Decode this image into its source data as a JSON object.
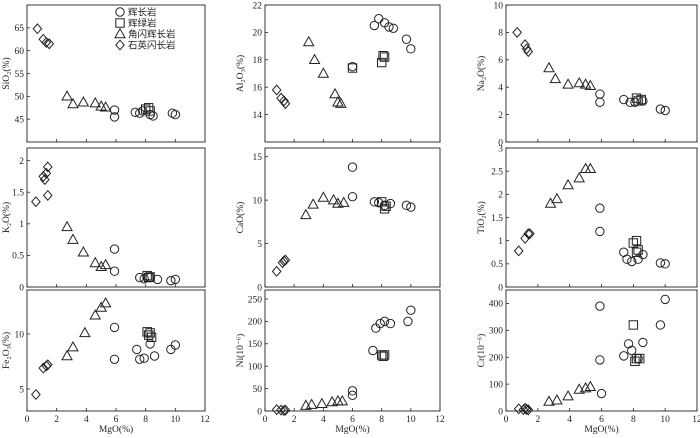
{
  "legend": {
    "items": [
      {
        "marker": "circle",
        "label": "辉长岩"
      },
      {
        "marker": "square",
        "label": "辉绿岩"
      },
      {
        "marker": "triangle",
        "label": "角闪辉长岩"
      },
      {
        "marker": "diamond",
        "label": "石英闪长岩"
      }
    ]
  },
  "chart_data": [
    {
      "type": "scatter",
      "ylabel": "SiO₂(%)",
      "xlabel": "",
      "xlim": [
        0,
        12
      ],
      "ylim": [
        40,
        70
      ],
      "x_ticks": [],
      "y_ticks": [
        45,
        50,
        55,
        60,
        65
      ],
      "series": [
        {
          "marker": "circle",
          "points": [
            [
              5.9,
              47
            ],
            [
              5.9,
              45.5
            ],
            [
              7.3,
              46.5
            ],
            [
              7.6,
              46.3
            ],
            [
              7.8,
              46.8
            ],
            [
              8.3,
              46
            ],
            [
              8.5,
              45.7
            ],
            [
              9.8,
              46.3
            ],
            [
              10,
              46
            ]
          ]
        },
        {
          "marker": "square",
          "points": [
            [
              8,
              47.2
            ],
            [
              8.2,
              47.5
            ],
            [
              8.3,
              46.8
            ]
          ]
        },
        {
          "marker": "triangle",
          "points": [
            [
              2.7,
              50
            ],
            [
              3.1,
              48.3
            ],
            [
              3.8,
              48.7
            ],
            [
              4.6,
              48.5
            ],
            [
              5,
              47.8
            ],
            [
              5.3,
              47.6
            ]
          ]
        },
        {
          "marker": "diamond",
          "points": [
            [
              0.7,
              64.8
            ],
            [
              1.1,
              62.5
            ],
            [
              1.3,
              61.8
            ],
            [
              1.5,
              61.5
            ]
          ]
        }
      ]
    },
    {
      "type": "scatter",
      "ylabel": "Al₂O₃(%)",
      "xlabel": "",
      "xlim": [
        0,
        12
      ],
      "ylim": [
        12,
        22
      ],
      "x_ticks": [],
      "y_ticks": [
        14,
        16,
        18,
        20,
        22
      ],
      "series": [
        {
          "marker": "circle",
          "points": [
            [
              6,
              17.5
            ],
            [
              7.5,
              20.5
            ],
            [
              7.8,
              21
            ],
            [
              8.2,
              20.7
            ],
            [
              8.5,
              20.4
            ],
            [
              8.8,
              20.3
            ],
            [
              9.7,
              19.5
            ],
            [
              10,
              18.8
            ]
          ]
        },
        {
          "marker": "square",
          "points": [
            [
              6,
              17.4
            ],
            [
              8,
              17.8
            ],
            [
              8.1,
              18.3
            ],
            [
              8.2,
              18.2
            ]
          ]
        },
        {
          "marker": "triangle",
          "points": [
            [
              3,
              19.3
            ],
            [
              3.4,
              18
            ],
            [
              4,
              17
            ],
            [
              4.8,
              15.5
            ],
            [
              5,
              14.9
            ],
            [
              5.2,
              14.8
            ]
          ]
        },
        {
          "marker": "diamond",
          "points": [
            [
              0.8,
              15.8
            ],
            [
              1.1,
              15.2
            ],
            [
              1.3,
              15.0
            ],
            [
              1.4,
              14.8
            ]
          ]
        }
      ]
    },
    {
      "type": "scatter",
      "ylabel": "Na₂O(%)",
      "xlabel": "",
      "xlim": [
        0,
        12
      ],
      "ylim": [
        0,
        10
      ],
      "x_ticks": [],
      "y_ticks": [
        0,
        2,
        4,
        6,
        8,
        10
      ],
      "series": [
        {
          "marker": "circle",
          "points": [
            [
              5.9,
              3.5
            ],
            [
              5.9,
              2.9
            ],
            [
              7.4,
              3.1
            ],
            [
              7.8,
              2.9
            ],
            [
              8.1,
              2.9
            ],
            [
              8.6,
              3.0
            ],
            [
              9.7,
              2.4
            ],
            [
              10,
              2.3
            ]
          ]
        },
        {
          "marker": "square",
          "points": [
            [
              8.2,
              3.2
            ],
            [
              8.3,
              3.0
            ],
            [
              8.5,
              3.1
            ]
          ]
        },
        {
          "marker": "triangle",
          "points": [
            [
              2.7,
              5.4
            ],
            [
              3.1,
              4.6
            ],
            [
              3.9,
              4.2
            ],
            [
              4.6,
              4.3
            ],
            [
              5,
              4.2
            ],
            [
              5.3,
              4.1
            ]
          ]
        },
        {
          "marker": "diamond",
          "points": [
            [
              0.7,
              8.0
            ],
            [
              1.2,
              7.1
            ],
            [
              1.3,
              6.8
            ],
            [
              1.4,
              6.6
            ]
          ]
        }
      ]
    },
    {
      "type": "scatter",
      "ylabel": "K₂O(%)",
      "xlabel": "",
      "xlim": [
        0,
        12
      ],
      "ylim": [
        0,
        2.2
      ],
      "x_ticks": [],
      "y_ticks": [
        0,
        0.5,
        1.0,
        1.5,
        2.0
      ],
      "series": [
        {
          "marker": "circle",
          "points": [
            [
              5.9,
              0.6
            ],
            [
              5.9,
              0.25
            ],
            [
              7.6,
              0.15
            ],
            [
              7.9,
              0.13
            ],
            [
              8.3,
              0.15
            ],
            [
              8.8,
              0.12
            ],
            [
              9.7,
              0.1
            ],
            [
              10,
              0.12
            ]
          ]
        },
        {
          "marker": "square",
          "points": [
            [
              8.1,
              0.18
            ],
            [
              8.2,
              0.15
            ],
            [
              8.3,
              0.16
            ]
          ]
        },
        {
          "marker": "triangle",
          "points": [
            [
              2.7,
              0.95
            ],
            [
              3.1,
              0.75
            ],
            [
              3.8,
              0.55
            ],
            [
              4.6,
              0.38
            ],
            [
              5,
              0.32
            ],
            [
              5.3,
              0.35
            ]
          ]
        },
        {
          "marker": "diamond",
          "points": [
            [
              0.6,
              1.35
            ],
            [
              1.1,
              1.75
            ],
            [
              1.2,
              1.7
            ],
            [
              1.3,
              1.8
            ],
            [
              1.4,
              1.9
            ],
            [
              1.4,
              1.45
            ]
          ]
        }
      ]
    },
    {
      "type": "scatter",
      "ylabel": "CaO(%)",
      "xlabel": "",
      "xlim": [
        0,
        12
      ],
      "ylim": [
        0,
        16
      ],
      "x_ticks": [],
      "y_ticks": [
        0,
        5,
        10,
        15
      ],
      "series": [
        {
          "marker": "circle",
          "points": [
            [
              6,
              13.8
            ],
            [
              6,
              10.4
            ],
            [
              7.5,
              9.8
            ],
            [
              7.8,
              9.7
            ],
            [
              8.2,
              9.4
            ],
            [
              8.6,
              9.6
            ],
            [
              9.7,
              9.4
            ],
            [
              10,
              9.2
            ]
          ]
        },
        {
          "marker": "square",
          "points": [
            [
              8,
              9.8
            ],
            [
              8.2,
              9.0
            ],
            [
              8.3,
              9.3
            ]
          ]
        },
        {
          "marker": "triangle",
          "points": [
            [
              2.8,
              8.3
            ],
            [
              3.3,
              9.5
            ],
            [
              4,
              10.3
            ],
            [
              4.7,
              10
            ],
            [
              5,
              9.6
            ],
            [
              5.4,
              9.7
            ]
          ]
        },
        {
          "marker": "diamond",
          "points": [
            [
              0.8,
              1.8
            ],
            [
              1.2,
              2.8
            ],
            [
              1.3,
              3.0
            ],
            [
              1.4,
              3.1
            ]
          ]
        }
      ]
    },
    {
      "type": "scatter",
      "ylabel": "TiO₂(%)",
      "xlabel": "",
      "xlim": [
        0,
        12
      ],
      "ylim": [
        0,
        3
      ],
      "x_ticks": [],
      "y_ticks": [
        0,
        0.5,
        1.0,
        1.5,
        2.0,
        2.5,
        3.0
      ],
      "series": [
        {
          "marker": "circle",
          "points": [
            [
              5.9,
              1.7
            ],
            [
              5.9,
              1.2
            ],
            [
              7.4,
              0.75
            ],
            [
              7.6,
              0.6
            ],
            [
              7.9,
              0.55
            ],
            [
              8.3,
              0.6
            ],
            [
              8.6,
              0.7
            ],
            [
              9.7,
              0.52
            ],
            [
              10,
              0.5
            ]
          ]
        },
        {
          "marker": "square",
          "points": [
            [
              8,
              0.95
            ],
            [
              8.2,
              1.0
            ],
            [
              8.3,
              0.8
            ],
            [
              8.2,
              0.75
            ]
          ]
        },
        {
          "marker": "triangle",
          "points": [
            [
              2.8,
              1.8
            ],
            [
              3.2,
              1.9
            ],
            [
              3.9,
              2.2
            ],
            [
              4.6,
              2.35
            ],
            [
              5,
              2.55
            ],
            [
              5.3,
              2.55
            ]
          ]
        },
        {
          "marker": "diamond",
          "points": [
            [
              0.8,
              0.78
            ],
            [
              1.2,
              1.05
            ],
            [
              1.4,
              1.15
            ],
            [
              1.5,
              1.15
            ]
          ]
        }
      ]
    },
    {
      "type": "scatter",
      "ylabel": "Fe₂O₃(%)",
      "xlabel": "MgO(%)",
      "xlim": [
        0,
        12
      ],
      "ylim": [
        3,
        14
      ],
      "x_ticks": [
        0,
        2,
        4,
        6,
        8,
        10,
        12
      ],
      "y_ticks": [
        5,
        10
      ],
      "series": [
        {
          "marker": "circle",
          "points": [
            [
              5.9,
              10.6
            ],
            [
              5.9,
              7.7
            ],
            [
              7.4,
              8.6
            ],
            [
              7.6,
              7.7
            ],
            [
              7.9,
              7.8
            ],
            [
              8.3,
              9.1
            ],
            [
              8.6,
              8.0
            ],
            [
              9.7,
              8.6
            ],
            [
              10,
              9.0
            ]
          ]
        },
        {
          "marker": "square",
          "points": [
            [
              8.1,
              10.2
            ],
            [
              8.2,
              9.9
            ],
            [
              8.3,
              10.1
            ],
            [
              8.4,
              9.7
            ]
          ]
        },
        {
          "marker": "triangle",
          "points": [
            [
              2.7,
              8.0
            ],
            [
              3.1,
              8.8
            ],
            [
              3.9,
              10.1
            ],
            [
              4.6,
              11.7
            ],
            [
              5,
              12.4
            ],
            [
              5.3,
              12.8
            ]
          ]
        },
        {
          "marker": "diamond",
          "points": [
            [
              0.6,
              4.5
            ],
            [
              1.1,
              6.9
            ],
            [
              1.3,
              7.1
            ],
            [
              1.4,
              7.2
            ]
          ]
        }
      ]
    },
    {
      "type": "scatter",
      "ylabel": "Ni(10⁻⁶)",
      "xlabel": "MgO(%)",
      "xlim": [
        0,
        12
      ],
      "ylim": [
        0,
        270
      ],
      "x_ticks": [
        0,
        2,
        4,
        6,
        8,
        10,
        12
      ],
      "y_ticks": [
        0,
        50,
        100,
        150,
        200,
        250
      ],
      "series": [
        {
          "marker": "circle",
          "points": [
            [
              6,
              45
            ],
            [
              6,
              35
            ],
            [
              7.4,
              135
            ],
            [
              7.6,
              185
            ],
            [
              7.9,
              195
            ],
            [
              8.2,
              200
            ],
            [
              8.6,
              195
            ],
            [
              9.8,
              200
            ],
            [
              10,
              225
            ]
          ]
        },
        {
          "marker": "square",
          "points": [
            [
              8,
              125
            ],
            [
              8.1,
              122
            ],
            [
              8.2,
              125
            ]
          ]
        },
        {
          "marker": "triangle",
          "points": [
            [
              2.8,
              12
            ],
            [
              3.2,
              14
            ],
            [
              3.9,
              16
            ],
            [
              4.6,
              20
            ],
            [
              5,
              22
            ],
            [
              5.3,
              22
            ]
          ]
        },
        {
          "marker": "diamond",
          "points": [
            [
              0.8,
              3
            ],
            [
              1.1,
              2
            ],
            [
              1.3,
              1
            ],
            [
              1.4,
              2
            ]
          ]
        }
      ]
    },
    {
      "type": "scatter",
      "ylabel": "Cr(10⁻⁶)",
      "xlabel": "MgO(%)",
      "xlim": [
        0,
        12
      ],
      "ylim": [
        0,
        450
      ],
      "x_ticks": [
        0,
        2,
        4,
        6,
        8,
        10,
        12
      ],
      "y_ticks": [
        0,
        100,
        200,
        300,
        400
      ],
      "series": [
        {
          "marker": "circle",
          "points": [
            [
              5.9,
              390
            ],
            [
              5.9,
              190
            ],
            [
              6,
              65
            ],
            [
              7.4,
              205
            ],
            [
              7.7,
              250
            ],
            [
              7.9,
              225
            ],
            [
              8.3,
              195
            ],
            [
              8.6,
              255
            ],
            [
              9.7,
              320
            ],
            [
              10,
              415
            ]
          ]
        },
        {
          "marker": "square",
          "points": [
            [
              8,
              320
            ],
            [
              8.1,
              185
            ],
            [
              8.2,
              195
            ],
            [
              8.4,
              195
            ]
          ]
        },
        {
          "marker": "triangle",
          "points": [
            [
              2.7,
              35
            ],
            [
              3.2,
              40
            ],
            [
              3.9,
              55
            ],
            [
              4.6,
              80
            ],
            [
              5,
              85
            ],
            [
              5.3,
              90
            ]
          ]
        },
        {
          "marker": "diamond",
          "points": [
            [
              0.8,
              8
            ],
            [
              1.1,
              5
            ],
            [
              1.2,
              10
            ],
            [
              1.3,
              6
            ],
            [
              1.4,
              4
            ]
          ]
        }
      ]
    }
  ]
}
